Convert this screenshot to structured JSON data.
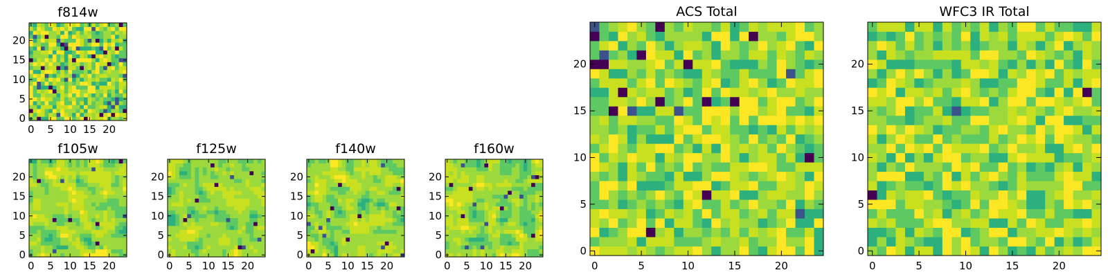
{
  "figure": {
    "background": "#ffffff"
  },
  "colormap": [
    "#440154",
    "#3b528b",
    "#21918c",
    "#2cb17e",
    "#5ec962",
    "#9bd93c",
    "#c8e020",
    "#fde725"
  ],
  "chart_data": [
    {
      "type": "heatmap",
      "name": "panel-f814w",
      "title": "f814w",
      "grid_size": 25,
      "xlim": [
        0,
        24
      ],
      "ylim": [
        0,
        24
      ],
      "xticks": [
        0,
        5,
        10,
        15,
        20
      ],
      "yticks": [
        0,
        5,
        10,
        15,
        20
      ],
      "xtick_labels": [
        "0",
        "5",
        "10",
        "15",
        "20"
      ],
      "ytick_labels": [
        "0",
        "5",
        "10",
        "15",
        "20"
      ],
      "seed": 814,
      "texture": "noisy",
      "dark_pixel_rate": 0.06
    },
    {
      "type": "heatmap",
      "name": "panel-f105w",
      "title": "f105w",
      "grid_size": 25,
      "xlim": [
        0,
        24
      ],
      "ylim": [
        0,
        24
      ],
      "xticks": [
        0,
        5,
        10,
        15,
        20
      ],
      "yticks": [
        0,
        5,
        10,
        15,
        20
      ],
      "xtick_labels": [
        "0",
        "5",
        "10",
        "15",
        "20"
      ],
      "ytick_labels": [
        "0",
        "5",
        "10",
        "15",
        "20"
      ],
      "seed": 105,
      "texture": "smooth",
      "dark_pixel_rate": 0.015
    },
    {
      "type": "heatmap",
      "name": "panel-f125w",
      "title": "f125w",
      "grid_size": 25,
      "xlim": [
        0,
        24
      ],
      "ylim": [
        0,
        24
      ],
      "xticks": [
        0,
        5,
        10,
        15,
        20
      ],
      "yticks": [
        0,
        5,
        10,
        15,
        20
      ],
      "xtick_labels": [
        "0",
        "5",
        "10",
        "15",
        "20"
      ],
      "ytick_labels": [
        "0",
        "5",
        "10",
        "15",
        "20"
      ],
      "seed": 125,
      "texture": "smooth",
      "dark_pixel_rate": 0.02
    },
    {
      "type": "heatmap",
      "name": "panel-f140w",
      "title": "f140w",
      "grid_size": 25,
      "xlim": [
        0,
        24
      ],
      "ylim": [
        0,
        24
      ],
      "xticks": [
        0,
        5,
        10,
        15,
        20
      ],
      "yticks": [
        0,
        5,
        10,
        15,
        20
      ],
      "xtick_labels": [
        "0",
        "5",
        "10",
        "15",
        "20"
      ],
      "ytick_labels": [
        "0",
        "5",
        "10",
        "15",
        "20"
      ],
      "seed": 140,
      "texture": "smooth",
      "dark_pixel_rate": 0.025
    },
    {
      "type": "heatmap",
      "name": "panel-f160w",
      "title": "f160w",
      "grid_size": 25,
      "xlim": [
        0,
        24
      ],
      "ylim": [
        0,
        24
      ],
      "xticks": [
        0,
        5,
        10,
        15,
        20
      ],
      "yticks": [
        0,
        5,
        10,
        15,
        20
      ],
      "xtick_labels": [
        "0",
        "5",
        "10",
        "15",
        "20"
      ],
      "ytick_labels": [
        "0",
        "5",
        "10",
        "15",
        "20"
      ],
      "seed": 160,
      "texture": "smooth",
      "dark_pixel_rate": 0.025
    },
    {
      "type": "heatmap",
      "name": "panel-acs-total",
      "title": "ACS Total",
      "grid_size": 25,
      "xlim": [
        0,
        24
      ],
      "ylim": [
        0,
        24
      ],
      "xticks": [
        0,
        5,
        10,
        15,
        20
      ],
      "yticks": [
        0,
        5,
        10,
        15,
        20
      ],
      "xtick_labels": [
        "0",
        "5",
        "10",
        "15",
        "20"
      ],
      "ytick_labels": [
        "0",
        "5",
        "10",
        "15",
        "20"
      ],
      "seed": 2024,
      "texture": "noisy",
      "dark_pixel_rate": 0.02
    },
    {
      "type": "heatmap",
      "name": "panel-wfc3-ir-total",
      "title": "WFC3 IR Total",
      "grid_size": 25,
      "xlim": [
        0,
        24
      ],
      "ylim": [
        0,
        24
      ],
      "xticks": [
        0,
        5,
        10,
        15,
        20
      ],
      "yticks": [
        0,
        5,
        10,
        15,
        20
      ],
      "xtick_labels": [
        "0",
        "5",
        "10",
        "15",
        "20"
      ],
      "ytick_labels": [
        "0",
        "5",
        "10",
        "15",
        "20"
      ],
      "seed": 3003,
      "texture": "noisy",
      "dark_pixel_rate": 0.02
    }
  ]
}
